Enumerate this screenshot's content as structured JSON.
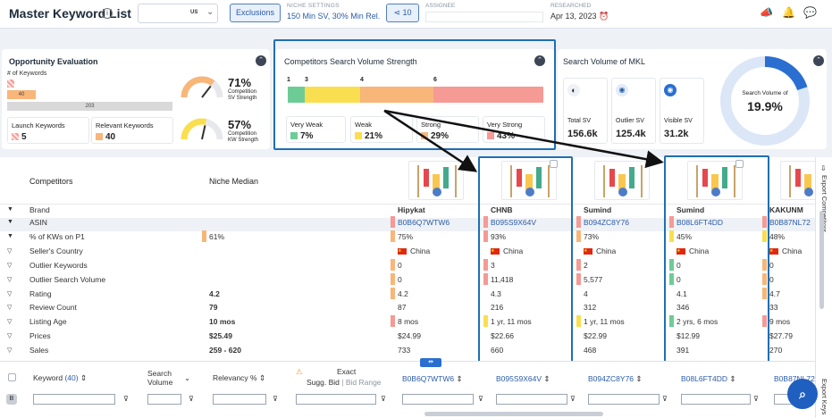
{
  "header": {
    "title": "Master Keyword List",
    "info_icon": "info-icon",
    "market_code": "US",
    "exclusions_label": "Exclusions",
    "niche_settings_label": "NICHE SETTINGS",
    "niche_settings_value": "150 Min SV, 30% Min Rel.",
    "share_count": "10",
    "assignee_label": "ASSIGNEE",
    "researched_label": "RESEARCHED",
    "researched_value": "Apr 13, 2023"
  },
  "opportunity": {
    "title": "Opportunity Evaluation",
    "subtitle": "# of Keywords",
    "bar_value_1": "40",
    "bar_value_2": "203",
    "launch_label": "Launch Keywords",
    "launch_value": "5",
    "relevant_label": "Relevant Keywords",
    "relevant_value": "40",
    "gauge1_value": "71%",
    "gauge1_label_1": "Competition",
    "gauge1_label_2": "SV Strength",
    "gauge1_fraction": 0.71,
    "gauge2_value": "57%",
    "gauge2_label_1": "Competition",
    "gauge2_label_2": "KW Strength",
    "gauge2_fraction": 0.57
  },
  "css": {
    "title": "Competitors Search Volume Strength",
    "ticks": [
      "1",
      "3",
      "4",
      "6"
    ],
    "cards": [
      {
        "label": "Very Weak",
        "value": "7%",
        "color": "#6dcc96"
      },
      {
        "label": "Weak",
        "value": "21%",
        "color": "#f9df4f"
      },
      {
        "label": "Strong",
        "value": "29%",
        "color": "#f8b679"
      },
      {
        "label": "Very Strong",
        "value": "43%",
        "color": "#f59a95"
      }
    ]
  },
  "mkl": {
    "title": "Search Volume of MKL",
    "cards": [
      {
        "label": "Total SV",
        "value": "156.6k",
        "icon": "half-circle-icon"
      },
      {
        "label": "Outlier SV",
        "value": "125.4k",
        "icon": "eye-slash-icon"
      },
      {
        "label": "Visible SV",
        "value": "31.2k",
        "icon": "eye-icon"
      }
    ],
    "donut_label": "Search Volume of",
    "donut_value": "19.9%",
    "donut_fraction": 0.199
  },
  "competitors": {
    "header_label": "Competitors",
    "niche_median_label": "Niche Median",
    "export_label": "Export Competitors",
    "rows": [
      "Brand",
      "ASIN",
      "% of KWs on P1",
      "Seller's Country",
      "Outlier Keywords",
      "Outlier Search Volume",
      "Rating",
      "Review Count",
      "Listing Age",
      "Prices",
      "Sales"
    ],
    "median": [
      "",
      "",
      "61%",
      "",
      "",
      "",
      "4.2",
      "79",
      "10 mos",
      "$25.49",
      "259 - 620"
    ],
    "products": [
      {
        "brand": "Hipykat",
        "asin": "B0B6Q7WTW6",
        "p1": "75%",
        "country": "China",
        "outlier_kw": "0",
        "outlier_sv": "0",
        "rating": "4.2",
        "reviews": "87",
        "age": "8 mos",
        "price": "$24.99",
        "sales": "733"
      },
      {
        "brand": "CHNB",
        "asin": "B095S9X64V",
        "p1": "93%",
        "country": "China",
        "outlier_kw": "3",
        "outlier_sv": "11,418",
        "rating": "4.3",
        "reviews": "216",
        "age": "1 yr, 11 mos",
        "price": "$22.66",
        "sales": "660"
      },
      {
        "brand": "Sumind",
        "asin": "B094ZC8Y76",
        "p1": "73%",
        "country": "China",
        "outlier_kw": "2",
        "outlier_sv": "5,577",
        "rating": "4",
        "reviews": "312",
        "age": "1 yr, 11 mos",
        "price": "$22.99",
        "sales": "468"
      },
      {
        "brand": "Sumind",
        "asin": "B08L6FT4DD",
        "p1": "45%",
        "country": "China",
        "outlier_kw": "0",
        "outlier_sv": "0",
        "rating": "4.1",
        "reviews": "346",
        "age": "2 yrs, 6 mos",
        "price": "$12.99",
        "sales": "391"
      },
      {
        "brand": "KAKUNM",
        "asin": "B0B87NL72",
        "p1": "48%",
        "country": "China",
        "outlier_kw": "0",
        "outlier_sv": "0",
        "rating": "4.7",
        "reviews": "33",
        "age": "9 mos",
        "price": "$27.79",
        "sales": "270"
      }
    ]
  },
  "keywords": {
    "keyword_label": "Keyword",
    "keyword_count": "(40)",
    "search_label_1": "Search",
    "search_label_2": "Volume",
    "relevancy_label": "Relevancy %",
    "exact_label": "Exact",
    "sugg_bid_label": "Sugg. Bid",
    "bid_range_label": "Bid Range",
    "asin_cols": [
      "B0B6Q7WTW6",
      "B095S9X64V",
      "B094ZC8Y76",
      "B08L6FT4DD",
      "B0B87NL72"
    ],
    "export_label": "Export Keys",
    "row_badge": "B"
  }
}
